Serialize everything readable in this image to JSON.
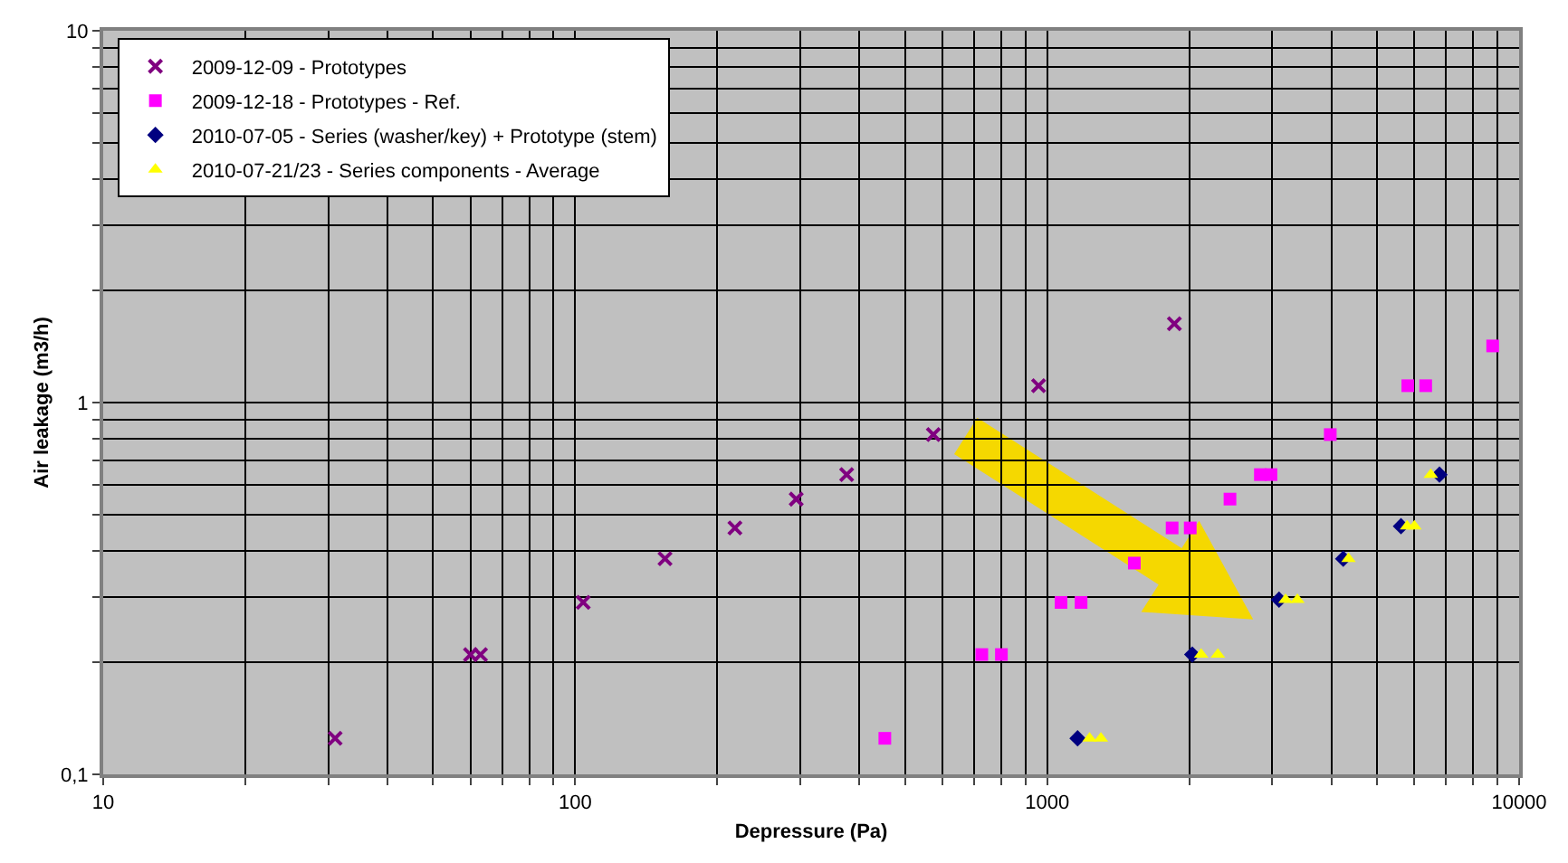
{
  "chart_data": {
    "type": "scatter",
    "xlabel": "Depressure (Pa)",
    "ylabel": "Air leakage (m3/h)",
    "log": "xy",
    "grid": true,
    "legend": "top left",
    "xlim": [
      10,
      10000
    ],
    "ylim": [
      0.1,
      10
    ],
    "xticks": [
      10,
      {
        "value": 20,
        "label": null
      },
      {
        "value": 30,
        "label": null
      },
      {
        "value": 40,
        "label": null
      },
      {
        "value": 50,
        "label": null
      },
      {
        "value": 60,
        "label": null
      },
      {
        "value": 70,
        "label": null
      },
      {
        "value": 80,
        "label": null
      },
      {
        "value": 90,
        "label": null
      },
      100,
      {
        "value": 200,
        "label": null
      },
      {
        "value": 300,
        "label": null
      },
      {
        "value": 400,
        "label": null
      },
      {
        "value": 500,
        "label": null
      },
      {
        "value": 600,
        "label": null
      },
      {
        "value": 700,
        "label": null
      },
      {
        "value": 800,
        "label": null
      },
      {
        "value": 900,
        "label": null
      },
      1000,
      {
        "value": 2000,
        "label": null
      },
      {
        "value": 3000,
        "label": null
      },
      {
        "value": 4000,
        "label": null
      },
      {
        "value": 5000,
        "label": null
      },
      {
        "value": 6000,
        "label": null
      },
      {
        "value": 7000,
        "label": null
      },
      {
        "value": 8000,
        "label": null
      },
      {
        "value": 9000,
        "label": null
      },
      10000
    ],
    "yticks": [
      {
        "value": 0.1,
        "label": "0,1"
      },
      {
        "value": 0.2,
        "label": null
      },
      {
        "value": 0.3,
        "label": null
      },
      {
        "value": 0.4,
        "label": null
      },
      {
        "value": 0.5,
        "label": null
      },
      {
        "value": 0.6,
        "label": null
      },
      {
        "value": 0.7,
        "label": null
      },
      {
        "value": 0.8,
        "label": null
      },
      {
        "value": 0.9,
        "label": null
      },
      1,
      {
        "value": 2,
        "label": null
      },
      {
        "value": 3,
        "label": null
      },
      {
        "value": 4,
        "label": null
      },
      {
        "value": 5,
        "label": null
      },
      {
        "value": 6,
        "label": null
      },
      {
        "value": 7,
        "label": null
      },
      {
        "value": 8,
        "label": null
      },
      {
        "value": 9,
        "label": null
      },
      10
    ],
    "series": [
      {
        "name": "2009-12-09 - Prototypes",
        "color": "#800080",
        "marker": "cross",
        "x": [
          31,
          60,
          63,
          104,
          155,
          218,
          294,
          376,
          574,
          959,
          1860
        ],
        "values": [
          0.125,
          0.21,
          0.21,
          0.29,
          0.38,
          0.46,
          0.55,
          0.64,
          0.82,
          1.11,
          1.63
        ]
      },
      {
        "name": "2009-12-18 - Prototypes - Ref.",
        "color": "#ff00ff",
        "marker": "square",
        "x": [
          453,
          727,
          800,
          1070,
          1180,
          1530,
          1840,
          2010,
          2440,
          2830,
          2980,
          3980,
          5810,
          6340,
          8790
        ],
        "values": [
          0.125,
          0.21,
          0.21,
          0.29,
          0.29,
          0.37,
          0.46,
          0.46,
          0.55,
          0.64,
          0.64,
          0.82,
          1.11,
          1.11,
          1.42
        ]
      },
      {
        "name": "2010-07-05 - Series (washer/key) + Prototype (stem)",
        "color": "#000080",
        "marker": "diamond",
        "x": [
          1160,
          2030,
          3100,
          4240,
          5620,
          6780
        ],
        "values": [
          0.125,
          0.21,
          0.295,
          0.38,
          0.465,
          0.64
        ]
      },
      {
        "name": "2010-07-21/23 - Series components - Average",
        "color": "#ffff00",
        "marker": "triangle",
        "x": [
          1230,
          1300,
          2120,
          2300,
          3200,
          3390,
          4350,
          5790,
          6000,
          6500
        ],
        "values": [
          0.125,
          0.125,
          0.21,
          0.21,
          0.295,
          0.295,
          0.38,
          0.465,
          0.465,
          0.64
        ]
      }
    ]
  }
}
